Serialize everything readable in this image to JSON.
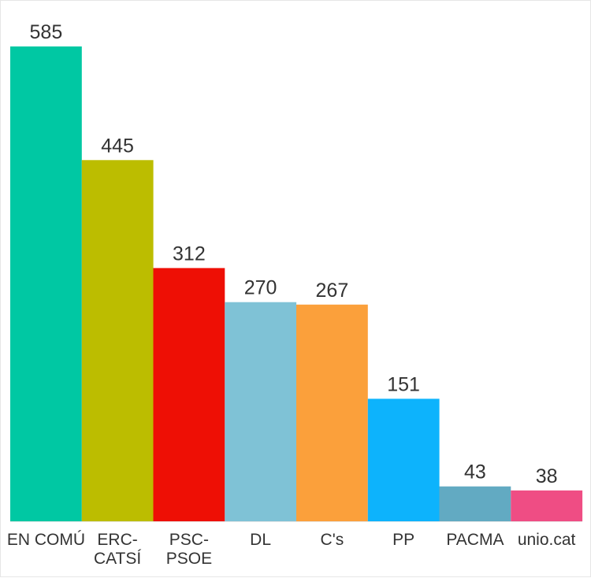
{
  "chart_data": {
    "type": "bar",
    "title": "",
    "xlabel": "",
    "ylabel": "",
    "categories": [
      "EN COMÚ",
      "ERC-CATSÍ",
      "PSC-PSOE",
      "DL",
      "C's",
      "PP",
      "PACMA",
      "unio.cat"
    ],
    "category_lines": [
      [
        "EN COMÚ"
      ],
      [
        "ERC-",
        "CATSÍ"
      ],
      [
        "PSC-",
        "PSOE"
      ],
      [
        "DL"
      ],
      [
        "C's"
      ],
      [
        "PP"
      ],
      [
        "PACMA"
      ],
      [
        "unio.cat"
      ]
    ],
    "values": [
      585,
      445,
      312,
      270,
      267,
      151,
      43,
      38
    ],
    "colors": [
      "#00c8a3",
      "#bcbd00",
      "#ee0f05",
      "#7fc2d6",
      "#fba03b",
      "#0db3fc",
      "#62aac2",
      "#ef4d84"
    ],
    "ylim": [
      0,
      585
    ],
    "grid": false,
    "legend": "none"
  }
}
